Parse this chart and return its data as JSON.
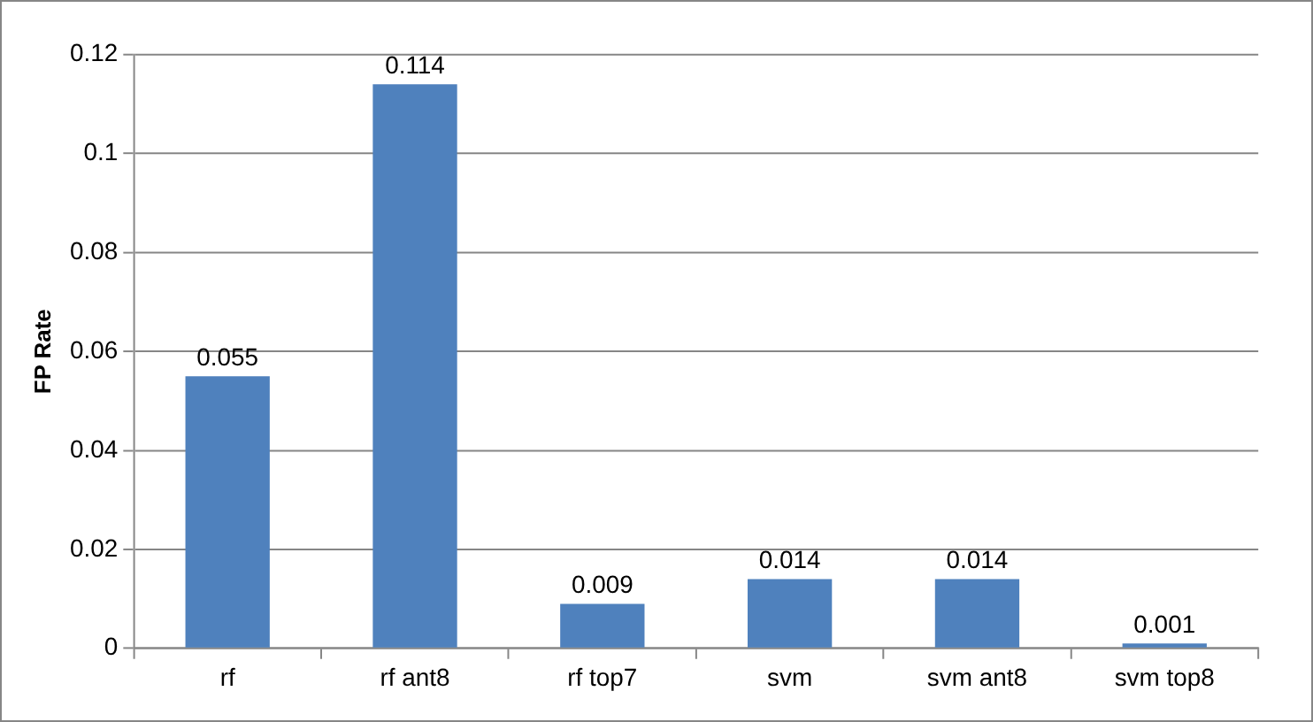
{
  "chart_data": {
    "type": "bar",
    "ylabel": "FP Rate",
    "categories": [
      "rf",
      "rf ant8",
      "rf top7",
      "svm",
      "svm ant8",
      "svm top8"
    ],
    "values": [
      0.055,
      0.114,
      0.009,
      0.014,
      0.014,
      0.001
    ],
    "color": "#4f81bd",
    "ylim": [
      0,
      0.12
    ],
    "yticks": [
      0,
      0.02,
      0.04,
      0.06,
      0.08,
      0.1,
      0.12
    ],
    "grid": "y",
    "data_labels": true
  }
}
